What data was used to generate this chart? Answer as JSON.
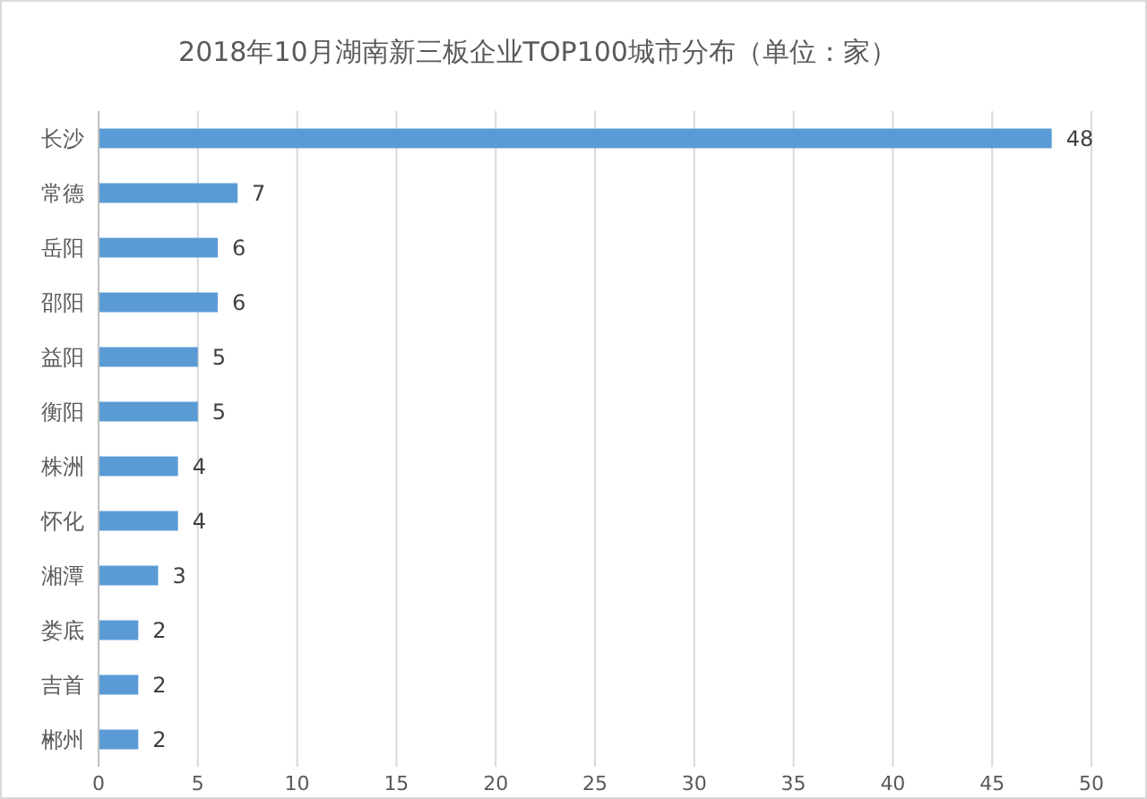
{
  "chart_data": {
    "type": "bar",
    "orientation": "horizontal",
    "title": "2018年10月湖南新三板企业TOP100城市分布（单位：家）",
    "categories": [
      "长沙",
      "常德",
      "岳阳",
      "邵阳",
      "益阳",
      "衡阳",
      "株洲",
      "怀化",
      "湘潭",
      "娄底",
      "吉首",
      "郴州"
    ],
    "values": [
      48,
      7,
      6,
      6,
      5,
      5,
      4,
      4,
      3,
      2,
      2,
      2
    ],
    "color": "#5b9bd5",
    "data_labels": true,
    "xlim": [
      0,
      50
    ],
    "xticks": [
      0,
      5,
      10,
      15,
      20,
      25,
      30,
      35,
      40,
      45,
      50
    ],
    "grid": "x"
  }
}
